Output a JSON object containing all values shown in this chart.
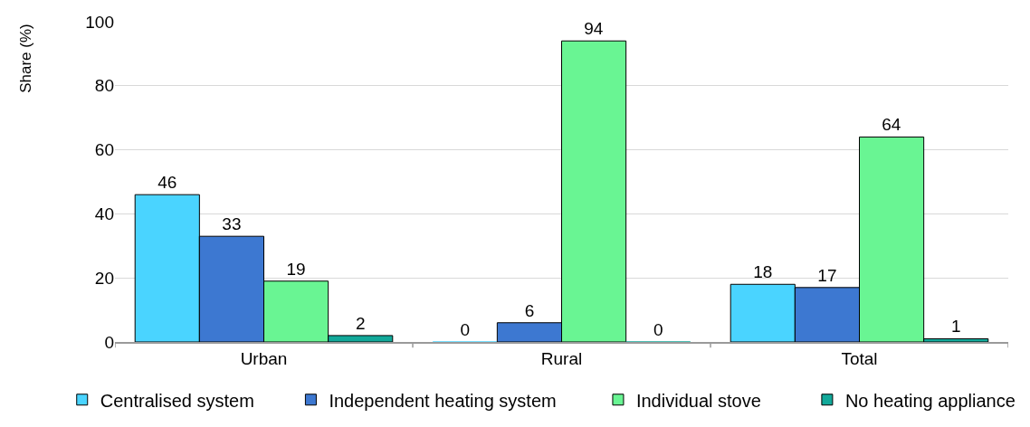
{
  "chart_data": {
    "type": "bar",
    "ylabel": "Share (%)",
    "categories": [
      "Urban",
      "Rural",
      "Total"
    ],
    "series": [
      {
        "name": "Centralised system",
        "color": "#4ad4ff",
        "values": [
          46,
          0,
          18
        ]
      },
      {
        "name": "Independent heating system",
        "color": "#3d78d1",
        "values": [
          33,
          6,
          17
        ]
      },
      {
        "name": "Individual stove",
        "color": "#69f593",
        "values": [
          19,
          94,
          64
        ]
      },
      {
        "name": "No heating appliance",
        "color": "#12a99a",
        "values": [
          2,
          0,
          1
        ]
      }
    ],
    "ylim": [
      0,
      100
    ],
    "yticks": [
      0,
      20,
      40,
      60,
      80,
      100
    ],
    "grid": "y",
    "legend": "bottom",
    "data_labels": true
  }
}
